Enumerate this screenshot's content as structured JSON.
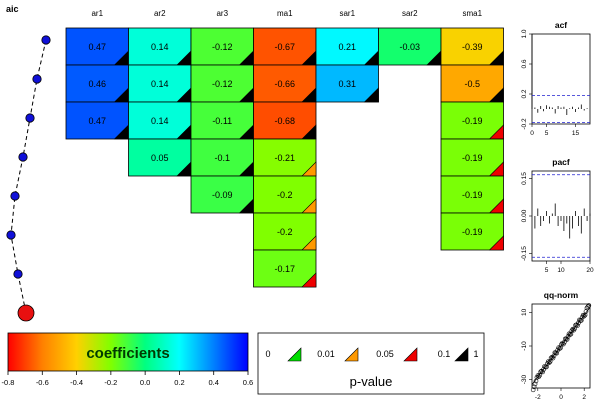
{
  "chart_data": [
    {
      "type": "line",
      "title": "aic",
      "series": [
        {
          "values": [
            8,
            7,
            6,
            5,
            4,
            3,
            2,
            1
          ],
          "marker_colors": [
            "#1010d8",
            "#1010d8",
            "#1010d8",
            "#1010d8",
            "#1010d8",
            "#1010d8",
            "#1010d8",
            "#e81010"
          ]
        }
      ]
    },
    {
      "type": "table",
      "columns": [
        "ar1",
        "ar2",
        "ar3",
        "ma1",
        "sar1",
        "sar2",
        "sma1"
      ],
      "cells": [
        {
          "row": 1,
          "col": "ar1",
          "value": 0.47,
          "p": "0.1-1"
        },
        {
          "row": 1,
          "col": "ar2",
          "value": 0.14,
          "p": "0.1-1"
        },
        {
          "row": 1,
          "col": "ar3",
          "value": -0.12,
          "p": "0.1-1"
        },
        {
          "row": 1,
          "col": "ma1",
          "value": -0.67,
          "p": "0.1-1"
        },
        {
          "row": 1,
          "col": "sar1",
          "value": 0.21,
          "p": "0.1-1"
        },
        {
          "row": 1,
          "col": "sar2",
          "value": -0.03,
          "p": "0.1-1"
        },
        {
          "row": 1,
          "col": "sma1",
          "value": -0.39,
          "p": "0.1-1"
        },
        {
          "row": 2,
          "col": "ar1",
          "value": 0.46,
          "p": "0.1-1"
        },
        {
          "row": 2,
          "col": "ar2",
          "value": 0.14,
          "p": "0.1-1"
        },
        {
          "row": 2,
          "col": "ar3",
          "value": -0.12,
          "p": "0.1-1"
        },
        {
          "row": 2,
          "col": "ma1",
          "value": -0.66,
          "p": "0.1-1"
        },
        {
          "row": 2,
          "col": "sar1",
          "value": 0.31,
          "p": "0.1-1"
        },
        {
          "row": 2,
          "col": "sma1",
          "value": -0.5,
          "p": "0.1-1"
        },
        {
          "row": 3,
          "col": "ar1",
          "value": 0.47,
          "p": "0.1-1"
        },
        {
          "row": 3,
          "col": "ar2",
          "value": 0.14,
          "p": "0.1-1"
        },
        {
          "row": 3,
          "col": "ar3",
          "value": -0.11,
          "p": "0.1-1"
        },
        {
          "row": 3,
          "col": "ma1",
          "value": -0.68,
          "p": "0.1-1"
        },
        {
          "row": 3,
          "col": "sma1",
          "value": -0.19,
          "p": "0.05-0.1"
        },
        {
          "row": 4,
          "col": "ar2",
          "value": 0.05,
          "p": "0.1-1"
        },
        {
          "row": 4,
          "col": "ar3",
          "value": -0.1,
          "p": "0.1-1"
        },
        {
          "row": 4,
          "col": "ma1",
          "value": -0.21,
          "p": "0.01-0.05"
        },
        {
          "row": 4,
          "col": "sma1",
          "value": -0.19,
          "p": "0.05-0.1"
        },
        {
          "row": 5,
          "col": "ar3",
          "value": -0.09,
          "p": "0.1-1"
        },
        {
          "row": 5,
          "col": "ma1",
          "value": -0.2,
          "p": "0.01-0.05"
        },
        {
          "row": 5,
          "col": "sma1",
          "value": -0.19,
          "p": "0.05-0.1"
        },
        {
          "row": 6,
          "col": "ma1",
          "value": -0.2,
          "p": "0.01-0.05"
        },
        {
          "row": 6,
          "col": "sma1",
          "value": -0.19,
          "p": "0.05-0.1"
        },
        {
          "row": 7,
          "col": "ma1",
          "value": -0.17,
          "p": "0.05-0.1"
        }
      ]
    },
    {
      "type": "heatmap",
      "title": "coefficients",
      "xlim": [
        -0.8,
        0.6
      ],
      "ticks": [
        "-0.8",
        "-0.6",
        "-0.4",
        "-0.2",
        "0.0",
        "0.2",
        "0.4",
        "0.6"
      ],
      "gradient": [
        "#ff0000",
        "#ff8000",
        "#ffd000",
        "#80ff00",
        "#00ff80",
        "#00ffff",
        "#0080ff",
        "#0000ff"
      ]
    },
    {
      "type": "table",
      "title": "p-value",
      "breaks": [
        "0",
        "0.01",
        "0.05",
        "0.1",
        "1"
      ],
      "colors": [
        "#00dd00",
        "#ff9900",
        "#ee0000",
        "#000000"
      ]
    },
    {
      "type": "bar",
      "title": "acf",
      "xlim": [
        0,
        20
      ],
      "ylim": [
        -0.2,
        1.0
      ],
      "xticks": [
        "0",
        "5",
        "15"
      ],
      "yticks": [
        "-0.2",
        "0.2",
        "0.6",
        "1.0"
      ],
      "ci": 0.18,
      "values": [
        1.0,
        0.02,
        -0.05,
        0.04,
        -0.03,
        0.05,
        0.03,
        0.02,
        -0.06,
        0.04,
        0.02,
        0.03,
        -0.08,
        0.01,
        0.03,
        -0.04,
        0.02,
        0.06,
        -0.02,
        0.01
      ]
    },
    {
      "type": "bar",
      "title": "pacf",
      "xlim": [
        0,
        20
      ],
      "ylim": [
        -0.18,
        0.18
      ],
      "xticks": [
        "5",
        "10",
        "20"
      ],
      "yticks": [
        "-0.15",
        "0.00",
        "0.15"
      ],
      "ci": 0.165,
      "values": [
        -0.05,
        0.03,
        -0.04,
        -0.02,
        0.02,
        -0.03,
        0.01,
        0.05,
        -0.04,
        -0.02,
        -0.06,
        -0.03,
        -0.09,
        -0.05,
        0.02,
        -0.04,
        -0.07,
        0.03,
        -0.02,
        0.01
      ]
    },
    {
      "type": "scatter",
      "title": "qq-norm",
      "xlim": [
        -2.5,
        2.5
      ],
      "ylim": [
        -35,
        15
      ],
      "xticks": [
        "-2",
        "0",
        "2"
      ],
      "yticks": [
        "-30",
        "-10",
        "10"
      ]
    }
  ]
}
